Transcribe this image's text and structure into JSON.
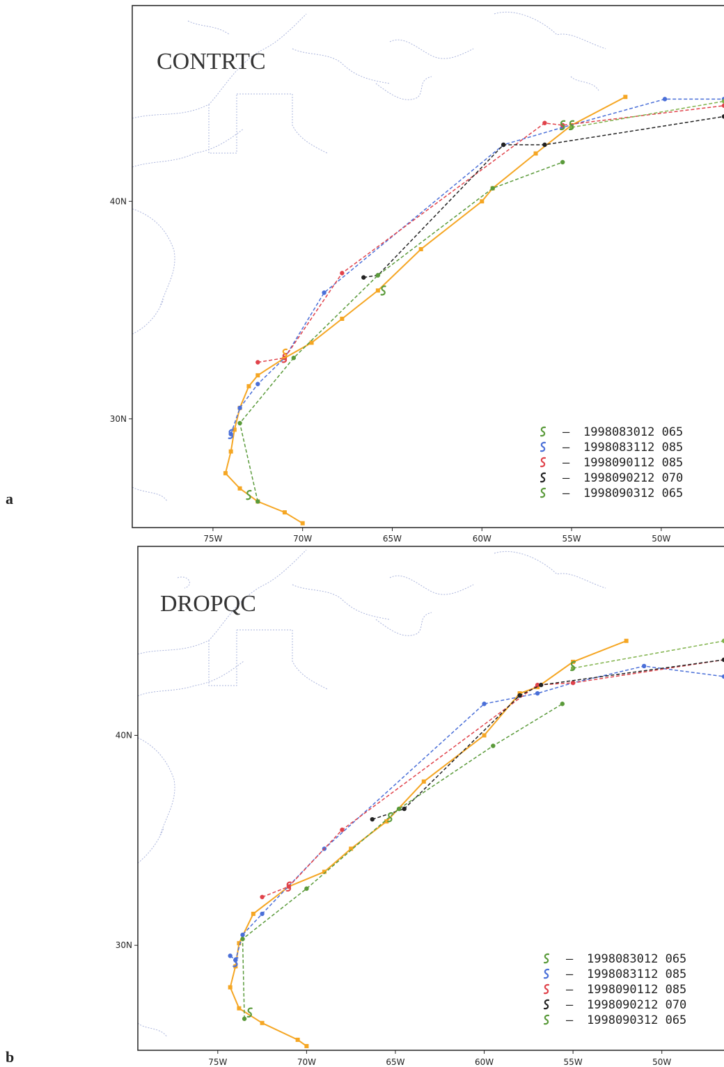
{
  "figure": {
    "panels": [
      {
        "id": "a",
        "letter": "a",
        "title": "CONTRTC",
        "lon_range": [
          -79.5,
          -46.5
        ],
        "lat_range": [
          25,
          49
        ],
        "x_ticks": [
          "75W",
          "70W",
          "65W",
          "60W",
          "55W",
          "50W"
        ],
        "x_tick_values": [
          -75,
          -70,
          -65,
          -60,
          -55,
          -50
        ],
        "y_ticks": [
          "40N",
          "30N"
        ],
        "y_tick_values": [
          40,
          30
        ],
        "tracks": [
          {
            "color": "#f5a623",
            "style": "solid",
            "points": [
              [
                -70.0,
                25.2
              ],
              [
                -71.0,
                25.7
              ],
              [
                -72.5,
                26.2
              ],
              [
                -73.5,
                26.8
              ],
              [
                -74.3,
                27.5
              ],
              [
                -74.0,
                28.5
              ],
              [
                -73.8,
                29.5
              ],
              [
                -73.5,
                30.5
              ],
              [
                -73.0,
                31.5
              ],
              [
                -72.5,
                32.0
              ],
              [
                -71.0,
                32.8
              ],
              [
                -69.5,
                33.5
              ],
              [
                -67.8,
                34.6
              ],
              [
                -65.8,
                35.9
              ],
              [
                -63.4,
                37.8
              ],
              [
                -60.0,
                40.0
              ],
              [
                -59.4,
                40.6
              ],
              [
                -57.0,
                42.2
              ],
              [
                -55.0,
                43.5
              ],
              [
                -52.0,
                44.8
              ]
            ]
          },
          {
            "color": "#4a6fd8",
            "style": "dashed",
            "points": [
              [
                -74.0,
                29.3
              ],
              [
                -73.5,
                30.5
              ],
              [
                -72.5,
                31.6
              ],
              [
                -71.0,
                32.8
              ],
              [
                -68.8,
                35.8
              ],
              [
                -58.8,
                42.6
              ],
              [
                -55.5,
                43.4
              ],
              [
                -49.8,
                44.7
              ],
              [
                -46.5,
                44.7
              ]
            ]
          },
          {
            "color": "#e0424a",
            "style": "dashed",
            "points": [
              [
                -72.5,
                32.6
              ],
              [
                -71.0,
                32.8
              ],
              [
                -67.8,
                36.7
              ],
              [
                -56.5,
                43.6
              ],
              [
                -55.5,
                43.5
              ],
              [
                -46.5,
                44.4
              ]
            ]
          },
          {
            "color": "#222222",
            "style": "dashed",
            "points": [
              [
                -66.6,
                36.5
              ],
              [
                -65.8,
                36.6
              ],
              [
                -58.8,
                42.6
              ],
              [
                -56.5,
                42.6
              ],
              [
                -46.5,
                43.9
              ]
            ]
          },
          {
            "color": "#5a9a3a",
            "style": "dashed",
            "points": [
              [
                -72.5,
                26.2
              ],
              [
                -73.5,
                29.8
              ],
              [
                -70.5,
                32.8
              ],
              [
                -65.8,
                36.6
              ],
              [
                -59.4,
                40.6
              ],
              [
                -55.5,
                41.8
              ]
            ]
          },
          {
            "color": "#7fb24a",
            "style": "dashed",
            "points": [
              [
                -55.0,
                43.4
              ],
              [
                -46.5,
                44.6
              ]
            ]
          }
        ],
        "storm_symbols": [
          {
            "color": "#4a6fd8",
            "lon": -74.0,
            "lat": 29.3
          },
          {
            "color": "#e0424a",
            "lon": -71.0,
            "lat": 32.8
          },
          {
            "color": "#f5a623",
            "lon": -71.0,
            "lat": 33.0
          },
          {
            "color": "#5a9a3a",
            "lon": -73.0,
            "lat": 26.5
          },
          {
            "color": "#5a9a3a",
            "lon": -65.5,
            "lat": 35.9
          },
          {
            "color": "#5a9a3a",
            "lon": -55.5,
            "lat": 43.5
          },
          {
            "color": "#5a9a3a",
            "lon": -55.0,
            "lat": 43.5
          }
        ]
      },
      {
        "id": "b",
        "letter": "b",
        "title": "DROPQC",
        "lon_range": [
          -79.5,
          -46.5
        ],
        "lat_range": [
          25,
          49
        ],
        "x_ticks": [
          "75W",
          "70W",
          "65W",
          "60W",
          "55W",
          "50W"
        ],
        "x_tick_values": [
          -75,
          -70,
          -65,
          -60,
          -55,
          -50
        ],
        "y_ticks": [
          "40N",
          "30N"
        ],
        "y_tick_values": [
          40,
          30
        ],
        "tracks": [
          {
            "color": "#f5a623",
            "style": "solid",
            "points": [
              [
                -70.0,
                25.2
              ],
              [
                -70.5,
                25.5
              ],
              [
                -72.5,
                26.3
              ],
              [
                -73.8,
                27.0
              ],
              [
                -74.3,
                28.0
              ],
              [
                -74.0,
                29.0
              ],
              [
                -73.8,
                30.1
              ],
              [
                -73.0,
                31.5
              ],
              [
                -71.0,
                32.8
              ],
              [
                -69.0,
                33.5
              ],
              [
                -67.5,
                34.6
              ],
              [
                -65.5,
                35.9
              ],
              [
                -63.4,
                37.8
              ],
              [
                -60.0,
                40.0
              ],
              [
                -58.0,
                42.0
              ],
              [
                -57.0,
                42.3
              ],
              [
                -55.0,
                43.5
              ],
              [
                -52.0,
                44.5
              ]
            ]
          },
          {
            "color": "#4a6fd8",
            "style": "dashed",
            "points": [
              [
                -74.3,
                29.5
              ],
              [
                -74.0,
                29.3
              ],
              [
                -73.6,
                30.5
              ],
              [
                -72.5,
                31.5
              ],
              [
                -69.0,
                34.6
              ],
              [
                -60.0,
                41.5
              ],
              [
                -57.0,
                42.0
              ],
              [
                -55.0,
                42.5
              ],
              [
                -51.0,
                43.3
              ],
              [
                -46.5,
                42.8
              ]
            ]
          },
          {
            "color": "#e0424a",
            "style": "dashed",
            "points": [
              [
                -72.5,
                32.3
              ],
              [
                -71.0,
                32.8
              ],
              [
                -68.0,
                35.5
              ],
              [
                -57.0,
                42.4
              ],
              [
                -55.0,
                42.5
              ],
              [
                -46.5,
                43.6
              ]
            ]
          },
          {
            "color": "#222222",
            "style": "dashed",
            "points": [
              [
                -66.3,
                36.0
              ],
              [
                -64.5,
                36.5
              ],
              [
                -58.0,
                41.9
              ],
              [
                -56.8,
                42.4
              ],
              [
                -46.5,
                43.6
              ]
            ]
          },
          {
            "color": "#5a9a3a",
            "style": "dashed",
            "points": [
              [
                -73.5,
                26.5
              ],
              [
                -73.6,
                30.3
              ],
              [
                -70.0,
                32.7
              ],
              [
                -64.8,
                36.5
              ],
              [
                -59.5,
                39.5
              ],
              [
                -55.6,
                41.5
              ]
            ]
          },
          {
            "color": "#7fb24a",
            "style": "dashed",
            "points": [
              [
                -55.0,
                43.2
              ],
              [
                -46.5,
                44.5
              ]
            ]
          }
        ],
        "storm_symbols": [
          {
            "color": "#4a6fd8",
            "lon": -74.0,
            "lat": 29.2
          },
          {
            "color": "#e0424a",
            "lon": -71.0,
            "lat": 32.8
          },
          {
            "color": "#5a9a3a",
            "lon": -73.2,
            "lat": 26.8
          },
          {
            "color": "#5a9a3a",
            "lon": -65.3,
            "lat": 36.1
          },
          {
            "color": "#5a9a3a",
            "lon": -55.0,
            "lat": 43.3
          }
        ]
      }
    ],
    "legend": [
      {
        "color": "#5a9a3a",
        "label": "1998083012 065"
      },
      {
        "color": "#4a6fd8",
        "label": "1998083112 085"
      },
      {
        "color": "#e0424a",
        "label": "1998090112 085"
      },
      {
        "color": "#222222",
        "label": "1998090212 070"
      },
      {
        "color": "#5a9a3a",
        "label": "1998090312 065"
      }
    ],
    "legend_dash": "–"
  }
}
